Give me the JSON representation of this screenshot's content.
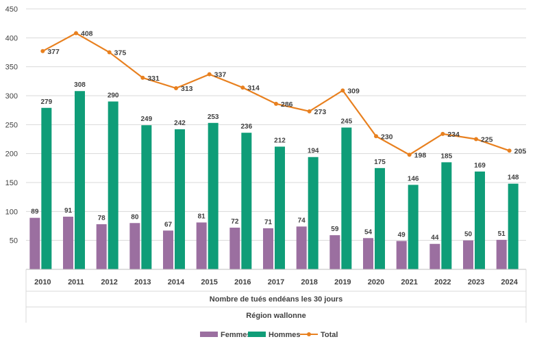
{
  "chart_data": {
    "type": "bar",
    "categories": [
      "2010",
      "2011",
      "2012",
      "2013",
      "2014",
      "2015",
      "2016",
      "2017",
      "2018",
      "2019",
      "2020",
      "2021",
      "2022",
      "2023",
      "2024"
    ],
    "series": [
      {
        "name": "Femmes",
        "type": "bar",
        "color": "#9b6fa0",
        "values": [
          89,
          91,
          78,
          80,
          67,
          81,
          72,
          71,
          74,
          59,
          54,
          49,
          44,
          50,
          51
        ]
      },
      {
        "name": "Hommes",
        "type": "bar",
        "color": "#0f9d78",
        "values": [
          279,
          308,
          290,
          249,
          242,
          253,
          236,
          212,
          194,
          245,
          175,
          146,
          185,
          169,
          148
        ]
      },
      {
        "name": "Total",
        "type": "line",
        "color": "#e8801f",
        "values": [
          377,
          408,
          375,
          331,
          313,
          337,
          314,
          286,
          273,
          309,
          230,
          198,
          234,
          225,
          205
        ]
      }
    ],
    "xlabel": "Nombre de tués endéans les 30 jours",
    "xlabel2": "Région wallonne",
    "yticks": [
      "0",
      "50",
      "100",
      "150",
      "200",
      "250",
      "300",
      "350",
      "400",
      "450"
    ],
    "ylim": [
      0,
      450
    ],
    "grid": true,
    "legend_position": "bottom"
  }
}
